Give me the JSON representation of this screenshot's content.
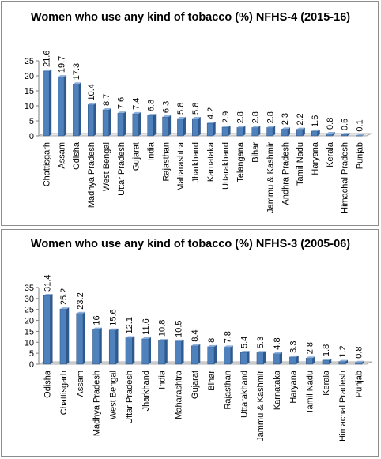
{
  "chart_data": [
    {
      "type": "bar",
      "title": "Women who use any kind of tobacco (%) NFHS-4 (2015-16)",
      "categories": [
        "Chattisgarh",
        "Assam",
        "Odisha",
        "Madhya Pradesh",
        "West Bengal",
        "Uttar Pradesh",
        "Gujarat",
        "India",
        "Rajasthan",
        "Maharashtra",
        "Jharkhand",
        "Karnataka",
        "Uttarakhand",
        "Telangana",
        "Bihar",
        "Jammu & Kashmir",
        "Andhra Pradesh",
        "Tamil Nadu",
        "Haryana",
        "Kerala",
        "Himachal Pradesh",
        "Punjab"
      ],
      "values": [
        21.6,
        19.7,
        17.3,
        10.4,
        8.7,
        7.6,
        7.4,
        6.8,
        6.3,
        5.8,
        5.8,
        4.2,
        2.9,
        2.8,
        2.8,
        2.8,
        2.3,
        2.2,
        1.6,
        0.8,
        0.5,
        0.1
      ],
      "value_labels": [
        "21.6",
        "19.7",
        "17.3",
        "10.4",
        "8.7",
        "7.6",
        "7.4",
        "6.8",
        "6.3",
        "5.8",
        "5.8",
        "4.2",
        "2.9",
        "2.8",
        "2.8",
        "2.8",
        "2.3",
        "2.2",
        "1.6",
        "0.8",
        "0.5",
        "0.1"
      ],
      "ylim": [
        0,
        25
      ],
      "yticks": [
        "0",
        "5",
        "10",
        "15",
        "20",
        "25"
      ],
      "xlabel": "",
      "ylabel": "",
      "grid": false,
      "legend": "none",
      "bar_color": "#4f81bd"
    },
    {
      "type": "bar",
      "title": "Women who use any kind of tobacco (%) NFHS-3 (2005-06)",
      "categories": [
        "Odisha",
        "Chattisgarh",
        "Assam",
        "Madhya Pradesh",
        "West Bengal",
        "Uttar Pradesh",
        "Jharkhand",
        "India",
        "Maharashtra",
        "Gujarat",
        "Bihar",
        "Rajasthan",
        "Uttarakhand",
        "Jammu & Kashmir",
        "Karnataka",
        "Haryana",
        "Tamil Nadu",
        "Kerala",
        "Himachal Pradesh",
        "Punjab"
      ],
      "values": [
        31.4,
        25.2,
        23.2,
        16,
        15.6,
        12.1,
        11.6,
        10.8,
        10.5,
        8.4,
        8,
        7.8,
        5.4,
        5.3,
        4.8,
        3.3,
        2.8,
        1.8,
        1.2,
        0.8
      ],
      "value_labels": [
        "31.4",
        "25.2",
        "23.2",
        "16",
        "15.6",
        "12.1",
        "11.6",
        "10.8",
        "10.5",
        "8.4",
        "8",
        "7.8",
        "5.4",
        "5.3",
        "4.8",
        "3.3",
        "2.8",
        "1.8",
        "1.2",
        "0.8"
      ],
      "ylim": [
        0,
        35
      ],
      "yticks": [
        "0",
        "5",
        "10",
        "15",
        "20",
        "25",
        "30",
        "35"
      ],
      "xlabel": "",
      "ylabel": "",
      "grid": false,
      "legend": "none",
      "bar_color": "#4f81bd"
    }
  ]
}
